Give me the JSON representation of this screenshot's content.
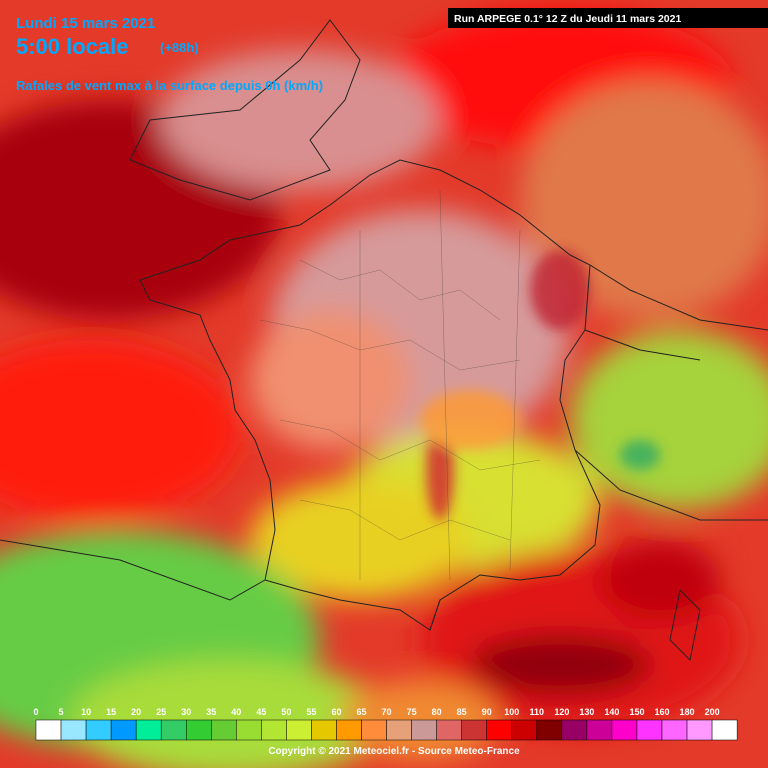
{
  "header": {
    "date": "Lundi 15 mars 2021",
    "time": "5:00 locale",
    "lead": "(+88h)",
    "subtitle": "Rafales de vent max à la surface depuis 0h (km/h)",
    "run": "Run ARPEGE 0.1° 12 Z du Jeudi 11 mars 2021"
  },
  "legend": {
    "values": [
      0,
      5,
      10,
      15,
      20,
      25,
      30,
      35,
      40,
      45,
      50,
      55,
      60,
      65,
      70,
      75,
      80,
      85,
      90,
      100,
      110,
      120,
      130,
      140,
      150,
      160,
      180,
      200
    ],
    "colors": [
      "#ffffff",
      "#99e6ff",
      "#33ccff",
      "#0099ff",
      "#00ee99",
      "#33cc66",
      "#33cc33",
      "#66cc33",
      "#99dd33",
      "#b3e633",
      "#ccee33",
      "#e6c800",
      "#ff9900",
      "#ff8c3a",
      "#e6a07a",
      "#cc9999",
      "#e06666",
      "#cc3333",
      "#ff0000",
      "#cc0000",
      "#800000",
      "#990066",
      "#cc0099",
      "#ff00cc",
      "#ff33ff",
      "#ff66ff",
      "#ff99ff",
      "#ffffff"
    ]
  },
  "footer": {
    "copyright": "Copyright © 2021 Meteociel.fr - Source Meteo-France"
  }
}
